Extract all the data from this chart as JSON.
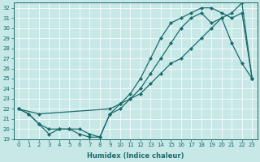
{
  "xlabel": "Humidex (Indice chaleur)",
  "bg_color": "#c8e8e8",
  "line_color": "#1a6b6b",
  "grid_color": "#b8d4d4",
  "xlim": [
    -0.5,
    23.5
  ],
  "ylim": [
    19,
    32.5
  ],
  "xticks": [
    0,
    1,
    2,
    3,
    4,
    5,
    6,
    7,
    8,
    9,
    10,
    11,
    12,
    13,
    14,
    15,
    16,
    17,
    18,
    19,
    20,
    21,
    22,
    23
  ],
  "yticks": [
    19,
    20,
    21,
    22,
    23,
    24,
    25,
    26,
    27,
    28,
    29,
    30,
    31,
    32
  ],
  "line1_x": [
    0,
    1,
    2,
    3,
    4,
    5,
    6,
    7,
    8,
    9,
    10,
    11,
    12,
    13,
    14,
    15,
    16,
    17,
    18,
    19,
    20,
    21,
    22,
    23
  ],
  "line1_y": [
    22,
    21.5,
    20.5,
    19.5,
    20,
    20,
    19.5,
    19.2,
    19.2,
    21.5,
    22.5,
    23.5,
    25,
    27,
    29,
    30.5,
    31,
    31.5,
    32,
    32,
    31.5,
    31,
    31.5,
    25
  ],
  "line2_x": [
    0,
    1,
    2,
    3,
    4,
    5,
    6,
    7,
    8,
    9,
    10,
    11,
    12,
    13,
    14,
    15,
    16,
    17,
    18,
    19,
    20,
    21,
    22,
    23
  ],
  "line2_y": [
    22,
    21.5,
    20.5,
    20,
    20,
    20,
    20,
    19.5,
    19.2,
    21.5,
    22,
    23,
    24,
    25.5,
    27,
    28.5,
    30,
    31,
    31.5,
    30.5,
    31,
    28.5,
    26.5,
    25
  ],
  "line3_x": [
    0,
    2,
    9,
    10,
    11,
    12,
    13,
    14,
    15,
    16,
    17,
    18,
    19,
    20,
    21,
    22,
    23
  ],
  "line3_y": [
    22,
    21.5,
    22,
    22.5,
    23,
    23.5,
    24.5,
    25.5,
    26.5,
    27,
    28,
    29,
    30,
    31,
    31.5,
    32.5,
    25
  ]
}
